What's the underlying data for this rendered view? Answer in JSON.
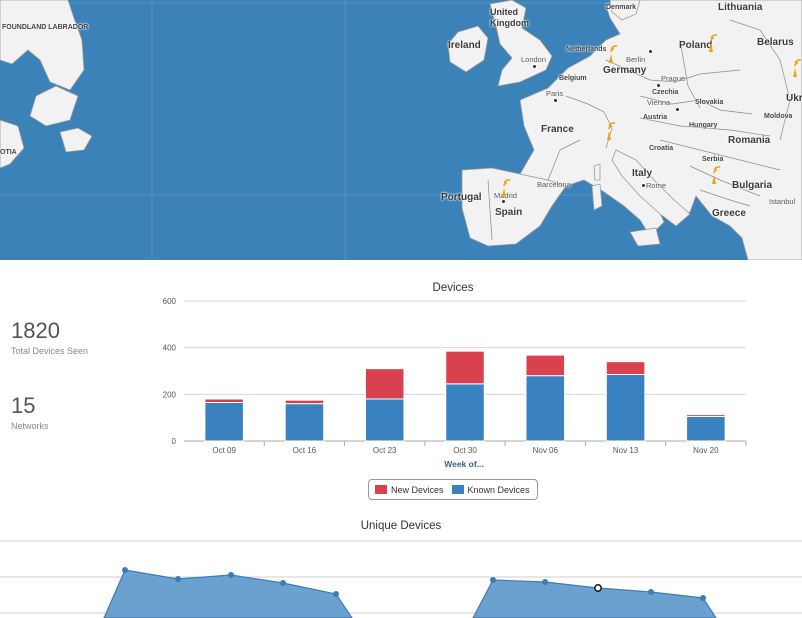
{
  "map": {
    "countries": [
      {
        "key": "ireland",
        "label": "Ireland"
      },
      {
        "key": "uk",
        "label": "United Kingdom"
      },
      {
        "key": "france",
        "label": "France"
      },
      {
        "key": "spain",
        "label": "Spain"
      },
      {
        "key": "portugal",
        "label": "Portugal"
      },
      {
        "key": "germany",
        "label": "Germany"
      },
      {
        "key": "poland",
        "label": "Poland"
      },
      {
        "key": "belarus",
        "label": "Belarus"
      },
      {
        "key": "lithuania",
        "label": "Lithuania"
      },
      {
        "key": "denmark",
        "label": "Denmark"
      },
      {
        "key": "netherlands",
        "label": "Netherlands"
      },
      {
        "key": "belgium",
        "label": "Belgium"
      },
      {
        "key": "czechia",
        "label": "Czechia"
      },
      {
        "key": "slovakia",
        "label": "Slovakia"
      },
      {
        "key": "austria",
        "label": "Austria"
      },
      {
        "key": "hungary",
        "label": "Hungary"
      },
      {
        "key": "romania",
        "label": "Romania"
      },
      {
        "key": "moldova",
        "label": "Moldova"
      },
      {
        "key": "croatia",
        "label": "Croatia"
      },
      {
        "key": "serbia",
        "label": "Serbia"
      },
      {
        "key": "bulgaria",
        "label": "Bulgaria"
      },
      {
        "key": "italy",
        "label": "Italy"
      },
      {
        "key": "greece",
        "label": "Greece"
      },
      {
        "key": "ukraine",
        "label": "Ukr"
      },
      {
        "key": "newfoundland",
        "label": "FOUNDLAND LABRADOR"
      },
      {
        "key": "nova_scotia",
        "label": "OTIA"
      }
    ],
    "cities": [
      "London",
      "Paris",
      "Berlin",
      "Prague",
      "Vienna",
      "Madrid",
      "Barcelona",
      "Rome",
      "Istanbul"
    ],
    "marker_icon": "wifi-signal-icon",
    "colors": {
      "water": "#3b82b8",
      "land": "#f2f2f2",
      "marker": "#f0a30a"
    }
  },
  "stats": [
    {
      "value": "1820",
      "label": "Total Devices Seen"
    },
    {
      "value": "15",
      "label": "Networks"
    }
  ],
  "chart_data": [
    {
      "type": "bar",
      "stacked": true,
      "title": "Devices",
      "xlabel": "Week of...",
      "ylabel": "",
      "ylim": [
        0,
        600
      ],
      "yticks": [
        0,
        200,
        400,
        600
      ],
      "categories": [
        "Oct 09",
        "Oct 16",
        "Oct 23",
        "Oct 30",
        "Nov 06",
        "Nov 13",
        "Nov 20"
      ],
      "series": [
        {
          "name": "Known Devices",
          "color": "#3a81bf",
          "values": [
            165,
            160,
            180,
            245,
            280,
            285,
            105
          ]
        },
        {
          "name": "New Devices",
          "color": "#d9414f",
          "values": [
            15,
            15,
            130,
            140,
            88,
            55,
            8
          ]
        }
      ],
      "legend": "bottom"
    },
    {
      "type": "area",
      "title": "Unique Devices",
      "legend": "none"
    }
  ]
}
